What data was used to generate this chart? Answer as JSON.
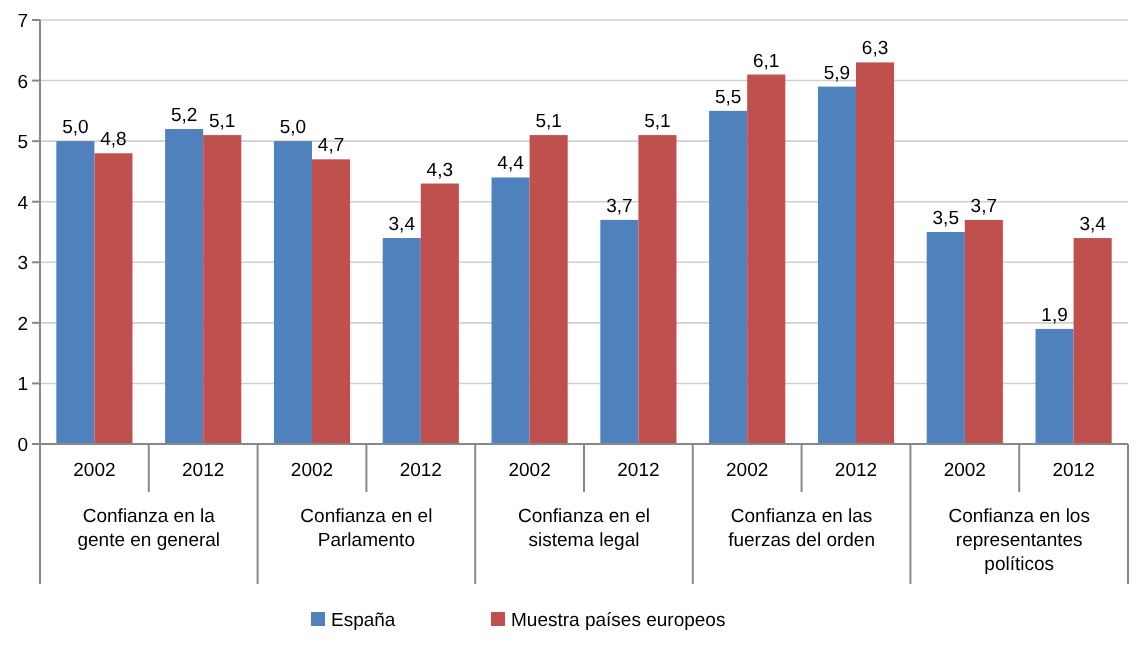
{
  "chart_data": {
    "type": "bar",
    "categories": [
      "2002",
      "2012",
      "2002",
      "2012",
      "2002",
      "2012",
      "2002",
      "2012",
      "2002",
      "2012"
    ],
    "series": [
      {
        "name": "España",
        "color": "#4f81bd",
        "values": [
          5.0,
          5.2,
          5.0,
          3.4,
          4.4,
          3.7,
          5.5,
          5.9,
          3.5,
          1.9
        ],
        "value_labels": [
          "5,0",
          "5,2",
          "5,0",
          "3,4",
          "4,4",
          "3,7",
          "5,5",
          "5,9",
          "3,5",
          "1,9"
        ]
      },
      {
        "name": "Muestra países europeos",
        "color": "#c0504d",
        "values": [
          4.8,
          5.1,
          4.7,
          4.3,
          5.1,
          5.1,
          6.1,
          6.3,
          3.7,
          3.4
        ],
        "value_labels": [
          "4,8",
          "5,1",
          "4,7",
          "4,3",
          "5,1",
          "5,1",
          "6,1",
          "6,3",
          "3,7",
          "3,4"
        ]
      }
    ],
    "annotations": [
      "Confianza en la gente en general",
      "Confianza en el Parlamento",
      "Confianza en el sistema legal",
      "Confianza en las fuerzas del orden",
      "Confianza en los representantes políticos"
    ],
    "ylim": [
      0,
      7
    ],
    "yticks": [
      0,
      1,
      2,
      3,
      4,
      5,
      6,
      7
    ],
    "grid": "y",
    "legend": "bottom"
  }
}
